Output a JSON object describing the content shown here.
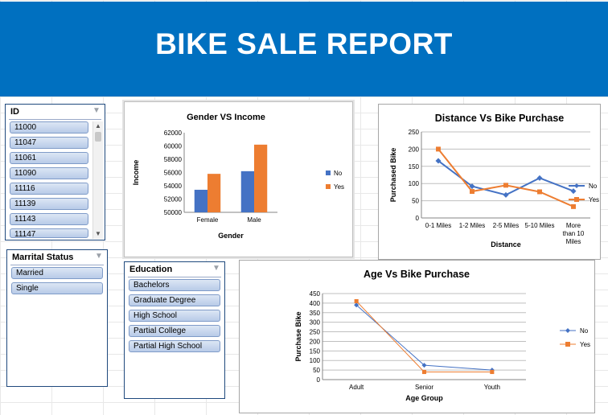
{
  "report": {
    "title": "BIKE SALE REPORT"
  },
  "slicers": {
    "id": {
      "title": "ID",
      "items": [
        "11000",
        "11047",
        "11061",
        "11090",
        "11116",
        "11139",
        "11143",
        "11147"
      ]
    },
    "marital_status": {
      "title": "Marrital Status",
      "items": [
        "Married",
        "Single"
      ]
    },
    "education": {
      "title": "Education",
      "items": [
        "Bachelors",
        "Graduate Degree",
        "High School",
        "Partial College",
        "Partial High School"
      ]
    }
  },
  "icons": {
    "filter": "filter-clear-icon",
    "scroll_up": "chevron-up-icon",
    "scroll_down": "chevron-down-icon"
  },
  "colors": {
    "banner": "#0070c0",
    "series_no": "#4472c4",
    "series_yes": "#ed7d31",
    "slicer_item": "#b8cbe8"
  },
  "chart_data": [
    {
      "type": "bar",
      "title": "Gender VS Income",
      "xlabel": "Gender",
      "ylabel": "Income",
      "categories": [
        "Female",
        "Male"
      ],
      "series": [
        {
          "name": "No",
          "values": [
            53400,
            56200
          ]
        },
        {
          "name": "Yes",
          "values": [
            55800,
            60200
          ]
        }
      ],
      "ylim": [
        50000,
        62000
      ],
      "yticks": [
        "50000",
        "52000",
        "54000",
        "56000",
        "58000",
        "60000",
        "62000"
      ],
      "legend": "right"
    },
    {
      "type": "line",
      "title": "Distance Vs Bike Purchase",
      "xlabel": "Distance",
      "ylabel": "Purchased Bike",
      "categories": [
        "0-1 Miles",
        "1-2 Miles",
        "2-5 Miles",
        "5-10 Miles",
        "More than 10 Miles"
      ],
      "series": [
        {
          "name": "No",
          "values": [
            166,
            92,
            67,
            116,
            78
          ]
        },
        {
          "name": "Yes",
          "values": [
            200,
            77,
            95,
            76,
            33
          ]
        }
      ],
      "ylim": [
        0,
        250
      ],
      "yticks": [
        "0",
        "50",
        "100",
        "150",
        "200",
        "250"
      ],
      "grid": true,
      "legend": "right"
    },
    {
      "type": "line",
      "title": "Age Vs Bike Purchase",
      "xlabel": "Age Group",
      "ylabel": "Purchase Bike",
      "categories": [
        "Adult",
        "Senior",
        "Youth"
      ],
      "series": [
        {
          "name": "No",
          "values": [
            390,
            75,
            50
          ]
        },
        {
          "name": "Yes",
          "values": [
            410,
            40,
            40
          ]
        }
      ],
      "ylim": [
        0,
        450
      ],
      "yticks": [
        "0",
        "50",
        "100",
        "150",
        "200",
        "250",
        "300",
        "350",
        "400",
        "450"
      ],
      "grid": true,
      "legend": "right"
    }
  ]
}
